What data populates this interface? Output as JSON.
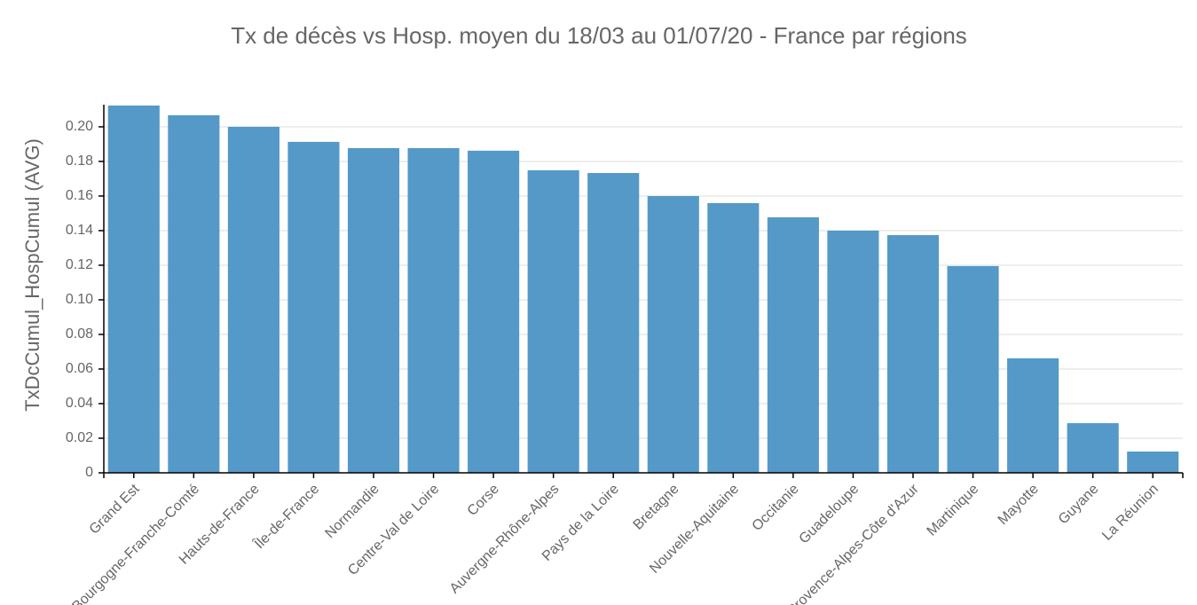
{
  "chart_data": {
    "type": "bar",
    "title": "Tx de décès vs Hosp. moyen du 18/03 au 01/07/20  - France par régions",
    "y_label": "TxDcCumul_HospCumul (AVG)",
    "categories": [
      "Grand Est",
      "Bourgogne-Franche-Comté",
      "Hauts-de-France",
      "Île-de-France",
      "Normandie",
      "Centre-Val de Loire",
      "Corse",
      "Auvergne-Rhône-Alpes",
      "Pays de la Loire",
      "Bretagne",
      "Nouvelle-Aquitaine",
      "Occitanie",
      "Guadeloupe",
      "Provence-Alpes-Côte d'Azur",
      "Martinique",
      "Mayotte",
      "Guyane",
      "La Réunion"
    ],
    "values": [
      0.2123,
      0.2067,
      0.2,
      0.1913,
      0.1877,
      0.1877,
      0.1862,
      0.1749,
      0.1733,
      0.16,
      0.1559,
      0.1477,
      0.14,
      0.1374,
      0.1195,
      0.0662,
      0.0287,
      0.0123
    ],
    "color": "#5499c7",
    "ylim": [
      0,
      0.2128
    ],
    "yticks": [
      0,
      0.02,
      0.04,
      0.06,
      0.08,
      {
        "value": 0.1,
        "label": "0.10"
      },
      0.12,
      0.14,
      0.16,
      0.18,
      {
        "value": 0.2,
        "label": "0.20"
      }
    ],
    "grid": true
  }
}
